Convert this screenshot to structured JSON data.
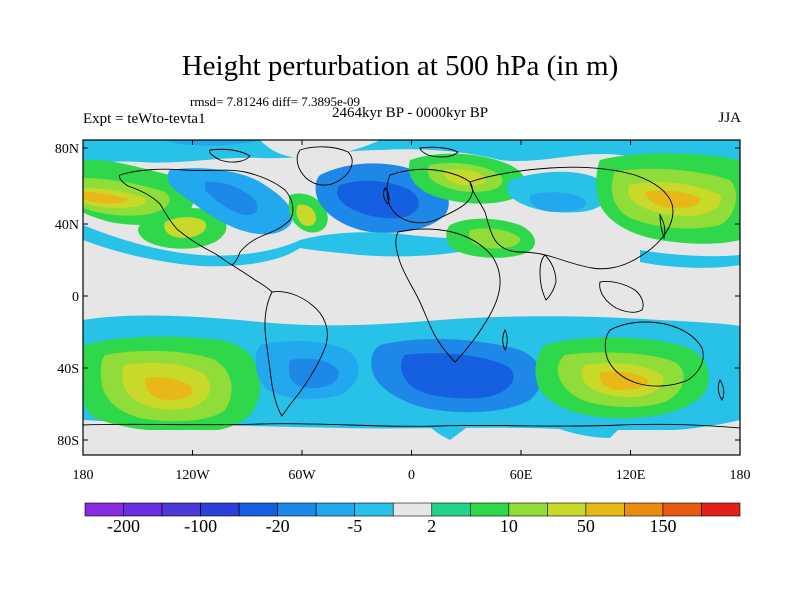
{
  "title": "Height perturbation at 500 hPa (in m)",
  "rmsd_line": "rmsd= 7.81246 diff= 7.3895e-09",
  "left_string": "Expt = teWto-tevta1",
  "center_string": "2464kyr BP - 0000kyr BP",
  "right_string": "JJA",
  "axes": {
    "lat_labels": [
      "80N",
      "40N",
      "0",
      "40S",
      "80S"
    ],
    "lon_labels": [
      "180",
      "120W",
      "60W",
      "0",
      "60E",
      "120E",
      "180"
    ]
  },
  "colorbar": {
    "colors": [
      "#8a2be2",
      "#6a2ee0",
      "#4b3ad8",
      "#2a40d8",
      "#1560e0",
      "#1e88e8",
      "#22a8ee",
      "#28c2e8",
      "#e6e6e6",
      "#22d48a",
      "#2ed84a",
      "#90dd3a",
      "#c9d92a",
      "#e8b818",
      "#ea8c10",
      "#e65a12",
      "#e0201a"
    ],
    "tick_labels": [
      "-200",
      "-100",
      "-20",
      "-5",
      "2",
      "10",
      "50",
      "150"
    ]
  },
  "map_colors": {
    "neutral": "#e6e6e6",
    "ocean_bg": "#e6e6e6",
    "teal": "#28c2e8",
    "mid_blue": "#22a8ee",
    "blue": "#1e88e8",
    "deep_blue": "#1560e0",
    "light_green": "#22d48a",
    "green": "#2ed84a",
    "yellow_green": "#90dd3a",
    "yellow": "#c9d92a",
    "orange": "#e8b818",
    "coast": "#000000"
  }
}
